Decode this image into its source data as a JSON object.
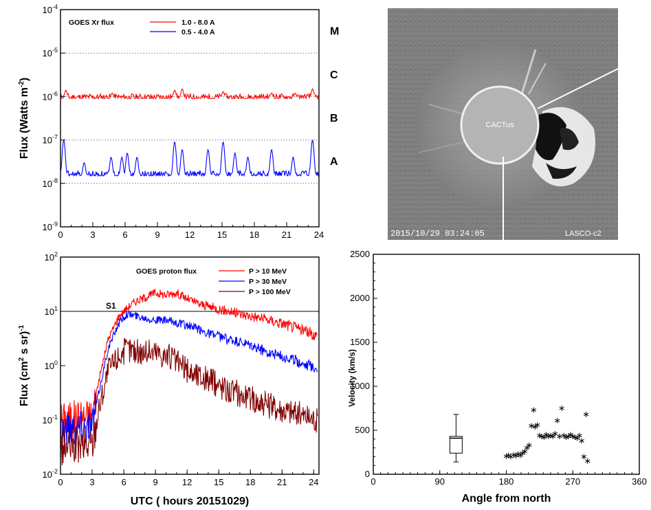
{
  "chart_data": [
    {
      "type": "line",
      "ylabel": "Flux (Watts m",
      "ylabel_sup": "-2",
      "legend_title": "GOES Xr flux",
      "xlim": [
        0,
        24
      ],
      "x_ticks": [
        "0",
        "3",
        "6",
        "9",
        "12",
        "15",
        "18",
        "21",
        "24"
      ],
      "y_scale": "log",
      "ylim_exp": [
        -9,
        -4
      ],
      "y_ticks": [
        {
          "base": "10",
          "exp": "-4"
        },
        {
          "base": "10",
          "exp": "-5"
        },
        {
          "base": "10",
          "exp": "-6"
        },
        {
          "base": "10",
          "exp": "-7"
        },
        {
          "base": "10",
          "exp": "-8"
        },
        {
          "base": "10",
          "exp": "-9"
        }
      ],
      "class_labels": [
        {
          "text": "M",
          "exp": -4.5
        },
        {
          "text": "C",
          "exp": -5.5
        },
        {
          "text": "B",
          "exp": -6.5
        },
        {
          "text": "A",
          "exp": -7.5
        }
      ],
      "series": [
        {
          "name": "1.0 - 8.0 A",
          "color": "#ff0000",
          "base": 9e-07,
          "spikes": [
            [
              0.5,
              1.4e-06
            ],
            [
              4.8,
              1.2e-06
            ],
            [
              10.6,
              1.4e-06
            ],
            [
              11.3,
              1.5e-06
            ],
            [
              15.1,
              1.3e-06
            ],
            [
              19.6,
              1.2e-06
            ],
            [
              21.8,
              1.2e-06
            ],
            [
              23.4,
              1.5e-06
            ]
          ]
        },
        {
          "name": "0.5 - 4.0 A",
          "color": "#0000ff",
          "base": 1.5e-08,
          "spikes": [
            [
              0.3,
              1e-07
            ],
            [
              2.2,
              3e-08
            ],
            [
              4.7,
              4e-08
            ],
            [
              5.7,
              4e-08
            ],
            [
              6.2,
              5e-08
            ],
            [
              7.1,
              4e-08
            ],
            [
              10.6,
              9e-08
            ],
            [
              11.3,
              6e-08
            ],
            [
              13.7,
              6e-08
            ],
            [
              15.1,
              9e-08
            ],
            [
              16.2,
              5e-08
            ],
            [
              17.4,
              4e-08
            ],
            [
              19.6,
              6e-08
            ],
            [
              21.6,
              4e-08
            ],
            [
              23.4,
              1e-07
            ]
          ]
        }
      ]
    },
    {
      "type": "line",
      "xlabel": "UTC ( hours 20151029)",
      "ylabel": "Flux (cm",
      "ylabel_sup": "2",
      "ylabel_rest": " s sr)",
      "ylabel_sup2": "-1",
      "legend_title": "GOES proton flux",
      "xlim": [
        0,
        24.5
      ],
      "x_ticks": [
        "0",
        "3",
        "6",
        "9",
        "12",
        "15",
        "18",
        "21",
        "24"
      ],
      "y_scale": "log",
      "ylim_exp": [
        -2,
        2
      ],
      "y_ticks": [
        {
          "base": "10",
          "exp": "2"
        },
        {
          "base": "10",
          "exp": "1"
        },
        {
          "base": "10",
          "exp": "0"
        },
        {
          "base": "10",
          "exp": "-1"
        },
        {
          "base": "10",
          "exp": "-2"
        }
      ],
      "threshold": 10,
      "annotation": "S1",
      "series": [
        {
          "name": "P > 10 MeV",
          "color": "#ff0000",
          "points": [
            [
              0,
              0.1
            ],
            [
              3,
              0.12
            ],
            [
              3.6,
              0.5
            ],
            [
              4.5,
              3
            ],
            [
              5.5,
              8
            ],
            [
              6.2,
              11
            ],
            [
              7,
              15
            ],
            [
              8,
              18
            ],
            [
              9,
              22
            ],
            [
              10,
              20
            ],
            [
              11,
              22
            ],
            [
              12,
              17
            ],
            [
              13,
              14
            ],
            [
              15,
              11
            ],
            [
              17,
              9
            ],
            [
              19,
              7.5
            ],
            [
              21,
              6
            ],
            [
              23,
              4.5
            ],
            [
              24.4,
              3.5
            ]
          ]
        },
        {
          "name": "P > 30 MeV",
          "color": "#0000ff",
          "points": [
            [
              0,
              0.07
            ],
            [
              3,
              0.08
            ],
            [
              3.6,
              0.3
            ],
            [
              4.5,
              2
            ],
            [
              5.5,
              6
            ],
            [
              6.3,
              9
            ],
            [
              7.5,
              8
            ],
            [
              9,
              7
            ],
            [
              10.5,
              6.5
            ],
            [
              12,
              5.5
            ],
            [
              14,
              4
            ],
            [
              16,
              3
            ],
            [
              18,
              2.3
            ],
            [
              20,
              1.7
            ],
            [
              22,
              1.3
            ],
            [
              24.4,
              0.9
            ]
          ]
        },
        {
          "name": "P > 100 MeV",
          "color": "#800000",
          "points": [
            [
              0,
              0.03
            ],
            [
              3,
              0.035
            ],
            [
              3.6,
              0.15
            ],
            [
              4.5,
              0.8
            ],
            [
              5.5,
              1.5
            ],
            [
              6.3,
              2
            ],
            [
              7.5,
              1.8
            ],
            [
              9,
              1.8
            ],
            [
              10.5,
              1.4
            ],
            [
              12,
              0.8
            ],
            [
              14,
              0.55
            ],
            [
              16,
              0.35
            ],
            [
              18,
              0.25
            ],
            [
              20,
              0.18
            ],
            [
              22,
              0.14
            ],
            [
              24.4,
              0.1
            ]
          ]
        }
      ]
    },
    {
      "type": "scatter",
      "xlabel": "Angle from north",
      "ylabel": "Velocity (km/s)",
      "xlim": [
        0,
        360
      ],
      "ylim": [
        0,
        2500
      ],
      "x_ticks": [
        0,
        90,
        180,
        270,
        360
      ],
      "y_ticks": [
        0,
        500,
        1000,
        1500,
        2000,
        2500
      ],
      "box": {
        "x": 112,
        "min": 140,
        "q1": 240,
        "median": 410,
        "q3": 430,
        "max": 680
      },
      "points": [
        [
          180,
          205
        ],
        [
          183,
          215
        ],
        [
          186,
          200
        ],
        [
          190,
          220
        ],
        [
          193,
          210
        ],
        [
          196,
          230
        ],
        [
          199,
          215
        ],
        [
          202,
          240
        ],
        [
          205,
          260
        ],
        [
          208,
          300
        ],
        [
          211,
          330
        ],
        [
          214,
          550
        ],
        [
          217,
          730
        ],
        [
          219,
          540
        ],
        [
          222,
          560
        ],
        [
          225,
          440
        ],
        [
          228,
          430
        ],
        [
          231,
          420
        ],
        [
          234,
          450
        ],
        [
          237,
          430
        ],
        [
          240,
          440
        ],
        [
          243,
          430
        ],
        [
          246,
          460
        ],
        [
          249,
          610
        ],
        [
          252,
          430
        ],
        [
          255,
          750
        ],
        [
          258,
          440
        ],
        [
          261,
          420
        ],
        [
          264,
          430
        ],
        [
          267,
          450
        ],
        [
          270,
          430
        ],
        [
          273,
          420
        ],
        [
          276,
          410
        ],
        [
          279,
          440
        ],
        [
          282,
          380
        ],
        [
          285,
          200
        ],
        [
          288,
          680
        ],
        [
          290,
          150
        ]
      ]
    }
  ],
  "image_panel": {
    "center_label": "CACTus",
    "timestamp": "2015/10/29 03:24:05",
    "instrument": "LASCO-c2"
  }
}
